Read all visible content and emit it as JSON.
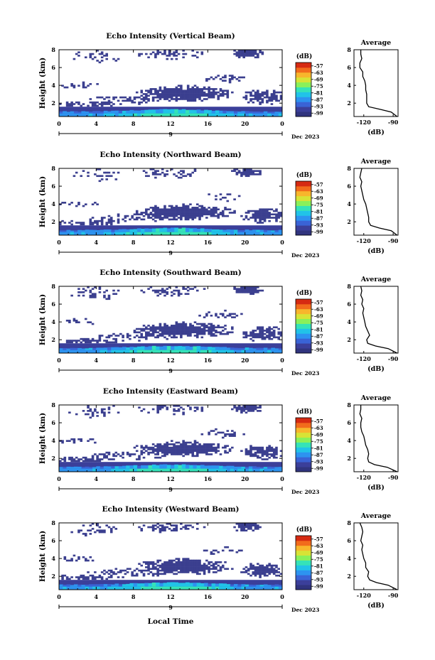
{
  "figure": {
    "x_axis_title": "Local Time",
    "date_label": "Dec 2023",
    "day_label": "9",
    "y_axis_title": "Height (km)",
    "colorbar_unit": "(dB)",
    "avg_title": "Average",
    "avg_xlabel": "(dB)"
  },
  "colors": {
    "background_echo": "#3b3f8f",
    "colormap": [
      "#30347e",
      "#3b3f9a",
      "#3a63d6",
      "#2d93f0",
      "#21c3e8",
      "#35e3b8",
      "#8af05a",
      "#d8e336",
      "#f8b62c",
      "#f26b1c",
      "#d62a12"
    ]
  },
  "chart_data": [
    {
      "type": "heatmap",
      "title": "Echo Intensity (Vertical Beam)",
      "x_ticks": [
        "0",
        "4",
        "8",
        "12",
        "16",
        "20",
        "0"
      ],
      "xlim": [
        0,
        24
      ],
      "y_ticks": [
        "2",
        "4",
        "6",
        "8"
      ],
      "ylim": [
        0.5,
        8
      ],
      "colorbar_ticks": [
        "-57",
        "-63",
        "-69",
        "-75",
        "-81",
        "-87",
        "-93",
        "-99"
      ],
      "colorbar_range": [
        -102,
        -54
      ],
      "average_profile": {
        "x_ticks": [
          "-120",
          "-90"
        ],
        "xlim": [
          -130,
          -85
        ],
        "y_ticks": [
          "2",
          "4",
          "6",
          "8"
        ],
        "height_km": [
          0.5,
          1.0,
          1.3,
          1.6,
          2.0,
          2.5,
          3.0,
          3.5,
          4.0,
          4.5,
          5.0,
          5.5,
          6.0,
          6.5,
          7.0,
          7.5,
          8.0
        ],
        "db": [
          -86,
          -92,
          -103,
          -115,
          -117,
          -117,
          -117,
          -118,
          -118,
          -119,
          -121,
          -121,
          -124,
          -124,
          -122,
          -123,
          -123
        ]
      }
    },
    {
      "type": "heatmap",
      "title": "Echo Intensity (Northward Beam)",
      "x_ticks": [
        "0",
        "4",
        "8",
        "12",
        "16",
        "20",
        "0"
      ],
      "xlim": [
        0,
        24
      ],
      "y_ticks": [
        "2",
        "4",
        "6",
        "8"
      ],
      "ylim": [
        0.5,
        8
      ],
      "colorbar_ticks": [
        "-57",
        "-63",
        "-69",
        "-75",
        "-81",
        "-87",
        "-93",
        "-99"
      ],
      "colorbar_range": [
        -102,
        -54
      ],
      "average_profile": {
        "x_ticks": [
          "-120",
          "-90"
        ],
        "xlim": [
          -130,
          -85
        ],
        "y_ticks": [
          "2",
          "4",
          "6",
          "8"
        ],
        "height_km": [
          0.5,
          1.0,
          1.3,
          1.6,
          2.0,
          2.5,
          3.0,
          3.5,
          4.0,
          4.5,
          5.0,
          5.5,
          6.0,
          6.5,
          7.0,
          7.5,
          8.0
        ],
        "db": [
          -86,
          -92,
          -104,
          -113,
          -115,
          -115,
          -116,
          -117,
          -118,
          -120,
          -121,
          -122,
          -123,
          -122,
          -124,
          -123,
          -122
        ]
      }
    },
    {
      "type": "heatmap",
      "title": "Echo Intensity (Southward Beam)",
      "x_ticks": [
        "0",
        "4",
        "8",
        "12",
        "16",
        "20",
        "0"
      ],
      "xlim": [
        0,
        24
      ],
      "y_ticks": [
        "2",
        "4",
        "6",
        "8"
      ],
      "ylim": [
        0.5,
        8
      ],
      "colorbar_ticks": [
        "-57",
        "-63",
        "-69",
        "-75",
        "-81",
        "-87",
        "-93",
        "-99"
      ],
      "colorbar_range": [
        -102,
        -54
      ],
      "average_profile": {
        "x_ticks": [
          "-120",
          "-90"
        ],
        "xlim": [
          -130,
          -85
        ],
        "y_ticks": [
          "2",
          "4",
          "6",
          "8"
        ],
        "height_km": [
          0.5,
          1.0,
          1.3,
          1.6,
          2.0,
          2.5,
          3.0,
          3.5,
          4.0,
          4.5,
          5.0,
          5.5,
          6.0,
          6.5,
          7.0,
          7.5,
          8.0
        ],
        "db": [
          -86,
          -95,
          -108,
          -116,
          -117,
          -114,
          -116,
          -118,
          -119,
          -120,
          -121,
          -120,
          -122,
          -121,
          -123,
          -122,
          -123
        ]
      }
    },
    {
      "type": "heatmap",
      "title": "Echo Intensity (Eastward Beam)",
      "x_ticks": [
        "0",
        "4",
        "8",
        "12",
        "16",
        "20",
        "0"
      ],
      "xlim": [
        0,
        24
      ],
      "y_ticks": [
        "2",
        "4",
        "6",
        "8"
      ],
      "ylim": [
        0.5,
        8
      ],
      "colorbar_ticks": [
        "-57",
        "-63",
        "-69",
        "-75",
        "-81",
        "-87",
        "-93",
        "-99"
      ],
      "colorbar_range": [
        -102,
        -54
      ],
      "average_profile": {
        "x_ticks": [
          "-120",
          "-90"
        ],
        "xlim": [
          -130,
          -85
        ],
        "y_ticks": [
          "2",
          "4",
          "6",
          "8"
        ],
        "height_km": [
          0.5,
          1.0,
          1.3,
          1.6,
          2.0,
          2.5,
          3.0,
          3.5,
          4.0,
          4.5,
          5.0,
          5.5,
          6.0,
          6.5,
          7.0,
          7.5,
          8.0
        ],
        "db": [
          -86,
          -96,
          -109,
          -115,
          -116,
          -115,
          -116,
          -118,
          -119,
          -120,
          -122,
          -123,
          -123,
          -122,
          -124,
          -123,
          -123
        ]
      }
    },
    {
      "type": "heatmap",
      "title": "Echo Intensity (Westward Beam)",
      "x_ticks": [
        "0",
        "4",
        "8",
        "12",
        "16",
        "20",
        "0"
      ],
      "xlim": [
        0,
        24
      ],
      "y_ticks": [
        "2",
        "4",
        "6",
        "8"
      ],
      "ylim": [
        0.5,
        8
      ],
      "colorbar_ticks": [
        "-57",
        "-63",
        "-69",
        "-75",
        "-81",
        "-87",
        "-93",
        "-99"
      ],
      "colorbar_range": [
        -102,
        -54
      ],
      "average_profile": {
        "x_ticks": [
          "-120",
          "-90"
        ],
        "xlim": [
          -130,
          -85
        ],
        "y_ticks": [
          "2",
          "4",
          "6",
          "8"
        ],
        "height_km": [
          0.5,
          1.0,
          1.3,
          1.6,
          2.0,
          2.5,
          3.0,
          3.5,
          4.0,
          4.5,
          5.0,
          5.5,
          6.0,
          6.5,
          7.0,
          7.5,
          8.0
        ],
        "db": [
          -86,
          -95,
          -107,
          -114,
          -116,
          -115,
          -118,
          -118,
          -120,
          -121,
          -122,
          -121,
          -123,
          -122,
          -121,
          -122,
          -124
        ]
      }
    }
  ]
}
